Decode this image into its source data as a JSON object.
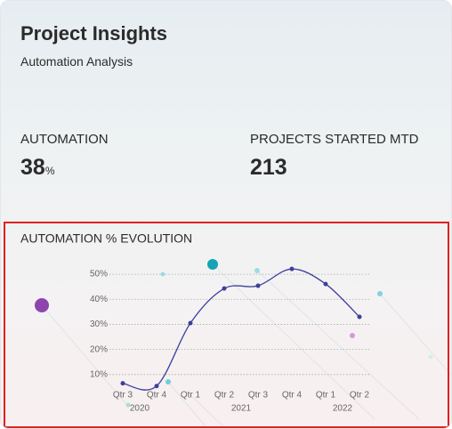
{
  "header": {
    "title": "Project Insights",
    "subtitle": "Automation Analysis"
  },
  "kpis": [
    {
      "label": "AUTOMATION",
      "value": "38",
      "unit": "%"
    },
    {
      "label": "PROJECTS STARTED MTD",
      "value": "213"
    }
  ],
  "chart_data": {
    "type": "line",
    "title": "AUTOMATION % EVOLUTION",
    "categories": [
      {
        "quarter": "Qtr 3",
        "year": "2020"
      },
      {
        "quarter": "Qtr 4",
        "year": "2020"
      },
      {
        "quarter": "Qtr 1",
        "year": "2021"
      },
      {
        "quarter": "Qtr 2",
        "year": "2021"
      },
      {
        "quarter": "Qtr 3",
        "year": "2021"
      },
      {
        "quarter": "Qtr 4",
        "year": "2021"
      },
      {
        "quarter": "Qtr 1",
        "year": "2022"
      },
      {
        "quarter": "Qtr 2",
        "year": "2022"
      }
    ],
    "series": [
      {
        "name": "Automation %",
        "color": "#3b3f9c",
        "values": [
          6.5,
          5.4,
          30.5,
          44.3,
          45.4,
          52.1,
          46.1,
          33.0
        ]
      }
    ],
    "ylim": [
      0,
      55
    ],
    "yticks": [
      {
        "value": 10,
        "label": "10%"
      },
      {
        "value": 20,
        "label": "20%"
      },
      {
        "value": 30,
        "label": "30%"
      },
      {
        "value": 40,
        "label": "40%"
      },
      {
        "value": 50,
        "label": "50%"
      }
    ],
    "grid": true
  }
}
